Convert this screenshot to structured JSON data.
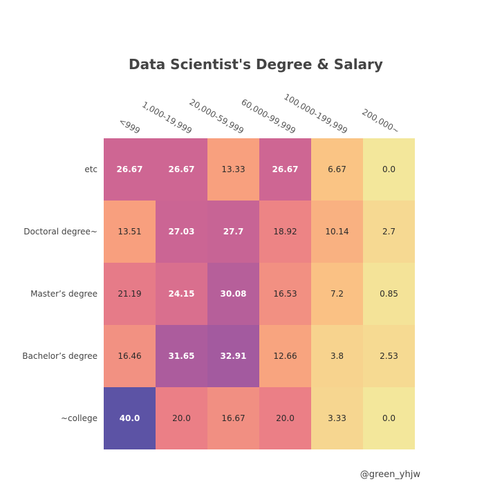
{
  "chart_data": {
    "type": "heatmap",
    "title": "Data Scientist's Degree & Salary",
    "x_categories": [
      "<999",
      "1,000-19,999",
      "20,000-59,999",
      "60,000-99,999",
      "100,000-199,999",
      "200,000~"
    ],
    "y_categories": [
      "etc",
      "Doctoral degree~",
      "Master’s degree",
      "Bachelor’s degree",
      "~college"
    ],
    "values": [
      [
        26.67,
        26.67,
        13.33,
        26.67,
        6.67,
        0.0
      ],
      [
        13.51,
        27.03,
        27.7,
        18.92,
        10.14,
        2.7
      ],
      [
        21.19,
        24.15,
        30.08,
        16.53,
        7.2,
        0.85
      ],
      [
        16.46,
        31.65,
        32.91,
        12.66,
        3.8,
        2.53
      ],
      [
        40.0,
        20.0,
        16.67,
        20.0,
        3.33,
        0.0
      ]
    ],
    "value_labels": [
      [
        "26.67",
        "26.67",
        "13.33",
        "26.67",
        "6.67",
        "0.0"
      ],
      [
        "13.51",
        "27.03",
        "27.7",
        "18.92",
        "10.14",
        "2.7"
      ],
      [
        "21.19",
        "24.15",
        "30.08",
        "16.53",
        "7.2",
        "0.85"
      ],
      [
        "16.46",
        "31.65",
        "32.91",
        "12.66",
        "3.8",
        "2.53"
      ],
      [
        "40.0",
        "20.0",
        "16.67",
        "20.0",
        "3.33",
        "0.0"
      ]
    ],
    "value_range": [
      0,
      40
    ],
    "colorscale": [
      "#f3e79b",
      "#fac484",
      "#f8a07e",
      "#eb7f86",
      "#ce6693",
      "#a059a0",
      "#5c53a5"
    ],
    "x_axis_position": "top",
    "grid": false,
    "legend": "none"
  },
  "credit": "@green_yhjw"
}
